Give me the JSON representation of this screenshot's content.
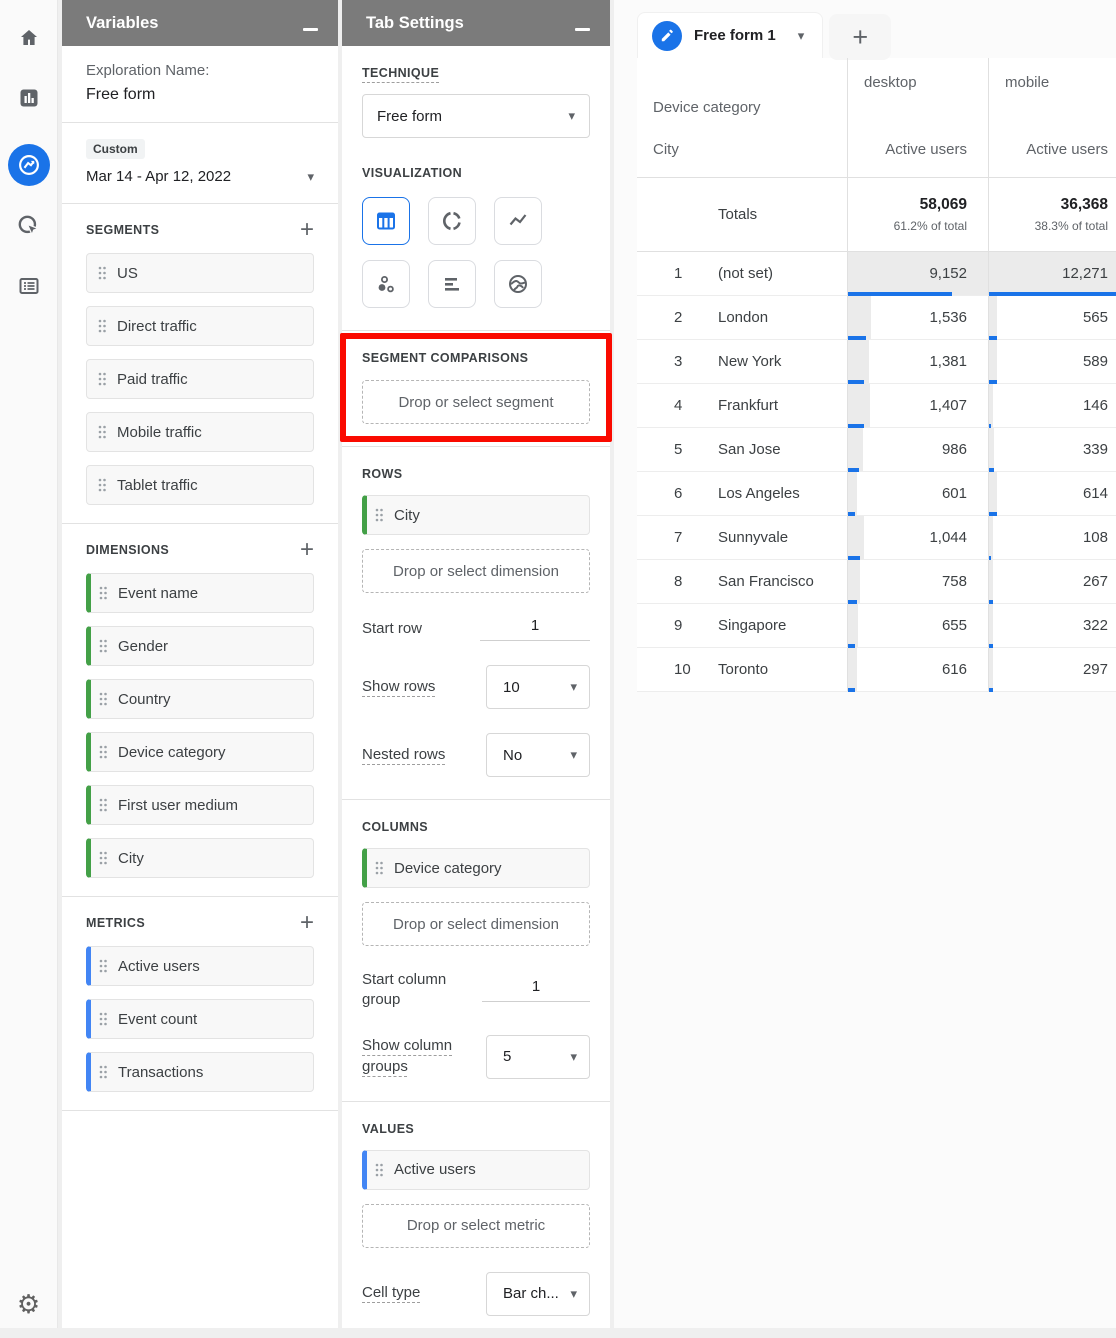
{
  "nav_rail": {
    "icons": [
      "home-icon",
      "reports-icon",
      "explore-icon",
      "advertising-icon",
      "library-icon",
      "settings-gear-icon"
    ],
    "selected": "explore-icon"
  },
  "colors": {
    "accent_blue": "#1a73e8",
    "dimension_green": "#43a047",
    "metric_blue": "#4285f4",
    "annotation_red": "#fa0a00"
  },
  "variables_panel": {
    "title": "Variables",
    "exploration_name_label": "Exploration Name:",
    "exploration_name_value": "Free form",
    "date_badge": "Custom",
    "date_range": "Mar 14 - Apr 12, 2022",
    "segments": {
      "label": "SEGMENTS",
      "items": [
        "US",
        "Direct traffic",
        "Paid traffic",
        "Mobile traffic",
        "Tablet traffic"
      ]
    },
    "dimensions": {
      "label": "DIMENSIONS",
      "items": [
        "Event name",
        "Gender",
        "Country",
        "Device category",
        "First user medium",
        "City"
      ]
    },
    "metrics": {
      "label": "METRICS",
      "items": [
        "Active users",
        "Event count",
        "Transactions"
      ]
    }
  },
  "tab_settings_panel": {
    "title": "Tab Settings",
    "technique": {
      "label": "TECHNIQUE",
      "value": "Free form"
    },
    "visualization": {
      "label": "VISUALIZATION",
      "options": [
        "table",
        "donut-chart",
        "line-chart",
        "scatter-plot",
        "bar-chart",
        "geo-map"
      ],
      "selected": "table"
    },
    "segment_comparisons": {
      "label": "SEGMENT COMPARISONS",
      "dropzone": "Drop or select segment"
    },
    "rows": {
      "label": "ROWS",
      "chips": [
        "City"
      ],
      "dropzone": "Drop or select dimension",
      "start_row_label": "Start row",
      "start_row_value": "1",
      "show_rows_label": "Show rows",
      "show_rows_value": "10",
      "nested_rows_label": "Nested rows",
      "nested_rows_value": "No"
    },
    "columns": {
      "label": "COLUMNS",
      "chips": [
        "Device category"
      ],
      "dropzone": "Drop or select dimension",
      "start_label": "Start column group",
      "start_value": "1",
      "show_label": "Show column groups",
      "show_value": "5"
    },
    "values": {
      "label": "VALUES",
      "chips": [
        "Active users"
      ],
      "dropzone": "Drop or select metric",
      "cell_type_label": "Cell type",
      "cell_type_value": "Bar ch..."
    }
  },
  "canvas": {
    "tab_label": "Free form 1",
    "add_tab_label": "+",
    "table": {
      "corner_top": "Device category",
      "corner_bottom": "City",
      "col_groups": [
        "desktop",
        "mobile"
      ],
      "metric_header": "Active users",
      "totals_label": "Totals",
      "totals": [
        {
          "value": "58,069",
          "share": "61.2% of total"
        },
        {
          "value": "36,368",
          "share": "38.3% of total"
        }
      ],
      "rows": [
        {
          "rank": "1",
          "city": "(not set)",
          "desktop": "9,152",
          "mobile": "12,271"
        },
        {
          "rank": "2",
          "city": "London",
          "desktop": "1,536",
          "mobile": "565"
        },
        {
          "rank": "3",
          "city": "New York",
          "desktop": "1,381",
          "mobile": "589"
        },
        {
          "rank": "4",
          "city": "Frankfurt",
          "desktop": "1,407",
          "mobile": "146"
        },
        {
          "rank": "5",
          "city": "San Jose",
          "desktop": "986",
          "mobile": "339"
        },
        {
          "rank": "6",
          "city": "Los Angeles",
          "desktop": "601",
          "mobile": "614"
        },
        {
          "rank": "7",
          "city": "Sunnyvale",
          "desktop": "1,044",
          "mobile": "108"
        },
        {
          "rank": "8",
          "city": "San Francisco",
          "desktop": "758",
          "mobile": "267"
        },
        {
          "rank": "9",
          "city": "Singapore",
          "desktop": "655",
          "mobile": "322"
        },
        {
          "rank": "10",
          "city": "Toronto",
          "desktop": "616",
          "mobile": "297"
        }
      ]
    }
  }
}
